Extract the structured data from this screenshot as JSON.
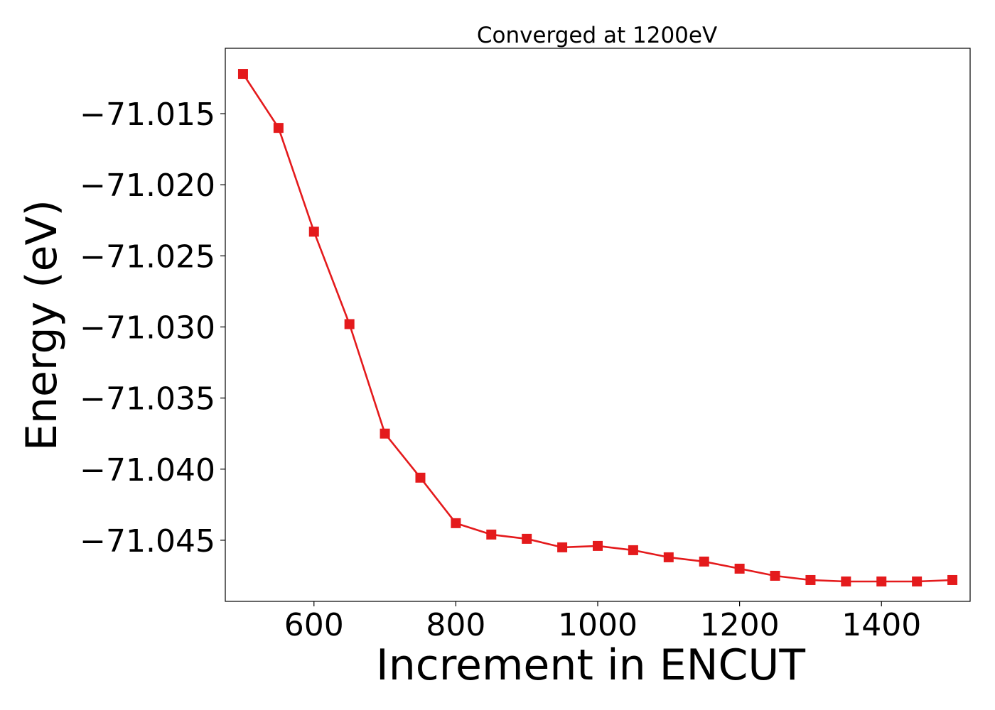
{
  "chart_data": {
    "type": "line",
    "title": "Converged at 1200eV",
    "xlabel": "Increment in ENCUT",
    "ylabel": "Energy (eV)",
    "xlim": [
      475,
      1525
    ],
    "ylim": [
      -71.0493,
      -71.0104
    ],
    "xticks": [
      600,
      800,
      1000,
      1200,
      1400
    ],
    "xtick_labels": [
      "600",
      "800",
      "1000",
      "1200",
      "1400"
    ],
    "yticks": [
      -71.015,
      -71.02,
      -71.025,
      -71.03,
      -71.035,
      -71.04,
      -71.045
    ],
    "ytick_labels": [
      "−71.015",
      "−71.020",
      "−71.025",
      "−71.030",
      "−71.035",
      "−71.040",
      "−71.045"
    ],
    "grid": false,
    "legend": "none",
    "series": [
      {
        "color": "#e41a1c",
        "marker": "square",
        "x": [
          500,
          550,
          600,
          650,
          700,
          750,
          800,
          850,
          900,
          950,
          1000,
          1050,
          1100,
          1150,
          1200,
          1250,
          1300,
          1350,
          1400,
          1450,
          1500
        ],
        "y": [
          -71.0122,
          -71.016,
          -71.0233,
          -71.0298,
          -71.0375,
          -71.0406,
          -71.0438,
          -71.0446,
          -71.0449,
          -71.0455,
          -71.0454,
          -71.0457,
          -71.0462,
          -71.0465,
          -71.047,
          -71.0475,
          -71.0478,
          -71.0479,
          -71.0479,
          -71.0479,
          -71.0478
        ]
      }
    ]
  }
}
